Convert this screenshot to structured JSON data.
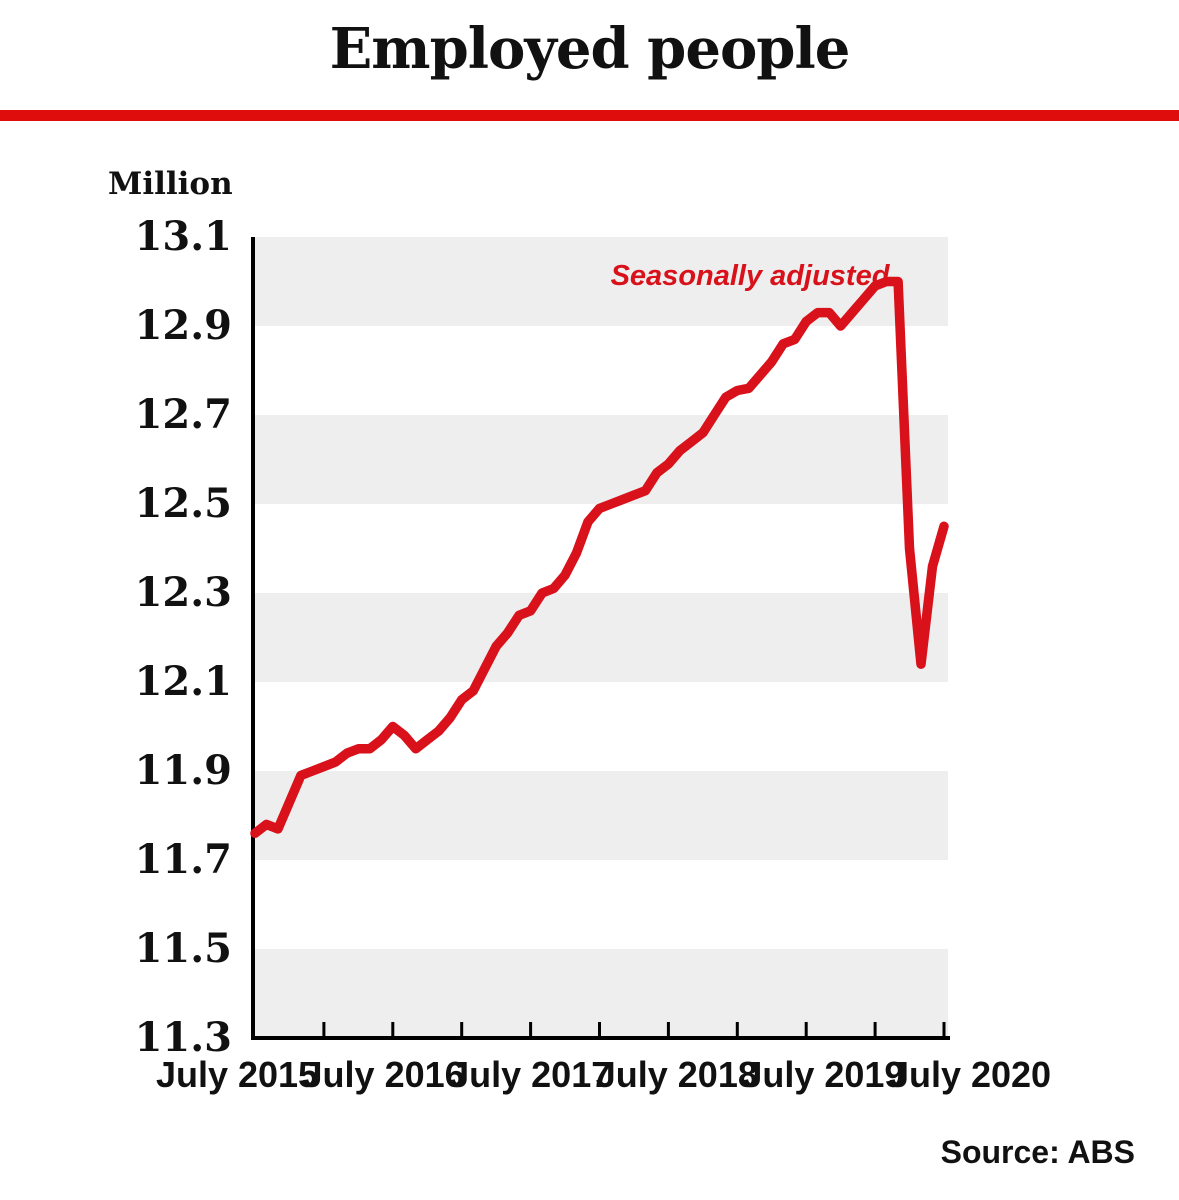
{
  "title": "Employed people",
  "y_axis_title": "Million",
  "annotation": "Seasonally adjusted",
  "source": "Source: ABS",
  "colors": {
    "rule_red": "#e00d0d",
    "line_red": "#d8111b",
    "annotation_red": "#d8111b",
    "band_gray": "#eeeeee",
    "axis_black": "#000000"
  },
  "chart_data": {
    "type": "line",
    "title": "Employed people",
    "ylabel": "Million",
    "series_name": "Seasonally adjusted",
    "ylim": [
      11.3,
      13.1
    ],
    "y_tick_labels": [
      "13.1",
      "12.9",
      "12.7",
      "12.5",
      "12.3",
      "12.1",
      "11.9",
      "11.7",
      "11.5",
      "11.3"
    ],
    "x_tick_labels": [
      "July 2015",
      "July 2016",
      "July 2017",
      "July 2018",
      "July 2019",
      "July 2020"
    ],
    "grid": "alternating horizontal gray bands, 0.2 wide, gray from 13.1-12.9 down to 11.5-11.3",
    "legend_position": "annotation inside plot, top right area",
    "x": [
      "Jul 2015",
      "Aug 2015",
      "Sep 2015",
      "Oct 2015",
      "Nov 2015",
      "Dec 2015",
      "Jan 2016",
      "Feb 2016",
      "Mar 2016",
      "Apr 2016",
      "May 2016",
      "Jun 2016",
      "Jul 2016",
      "Aug 2016",
      "Sep 2016",
      "Oct 2016",
      "Nov 2016",
      "Dec 2016",
      "Jan 2017",
      "Feb 2017",
      "Mar 2017",
      "Apr 2017",
      "May 2017",
      "Jun 2017",
      "Jul 2017",
      "Aug 2017",
      "Sep 2017",
      "Oct 2017",
      "Nov 2017",
      "Dec 2017",
      "Jan 2018",
      "Feb 2018",
      "Mar 2018",
      "Apr 2018",
      "May 2018",
      "Jun 2018",
      "Jul 2018",
      "Aug 2018",
      "Sep 2018",
      "Oct 2018",
      "Nov 2018",
      "Dec 2018",
      "Jan 2019",
      "Feb 2019",
      "Mar 2019",
      "Apr 2019",
      "May 2019",
      "Jun 2019",
      "Jul 2019",
      "Aug 2019",
      "Sep 2019",
      "Oct 2019",
      "Nov 2019",
      "Dec 2019",
      "Jan 2020",
      "Feb 2020",
      "Mar 2020",
      "Apr 2020",
      "May 2020",
      "Jun 2020",
      "Jul 2020"
    ],
    "values": [
      11.76,
      11.78,
      11.77,
      11.83,
      11.89,
      11.9,
      11.91,
      11.92,
      11.94,
      11.95,
      11.95,
      11.97,
      12.0,
      11.98,
      11.95,
      11.97,
      11.99,
      12.02,
      12.06,
      12.08,
      12.13,
      12.18,
      12.21,
      12.25,
      12.26,
      12.3,
      12.31,
      12.34,
      12.39,
      12.46,
      12.49,
      12.5,
      12.51,
      12.52,
      12.53,
      12.57,
      12.59,
      12.62,
      12.64,
      12.66,
      12.7,
      12.74,
      12.755,
      12.76,
      12.79,
      12.82,
      12.86,
      12.87,
      12.91,
      12.93,
      12.93,
      12.9,
      12.93,
      12.96,
      12.99,
      13.0,
      13.0,
      12.4,
      12.14,
      12.36,
      12.45
    ]
  }
}
